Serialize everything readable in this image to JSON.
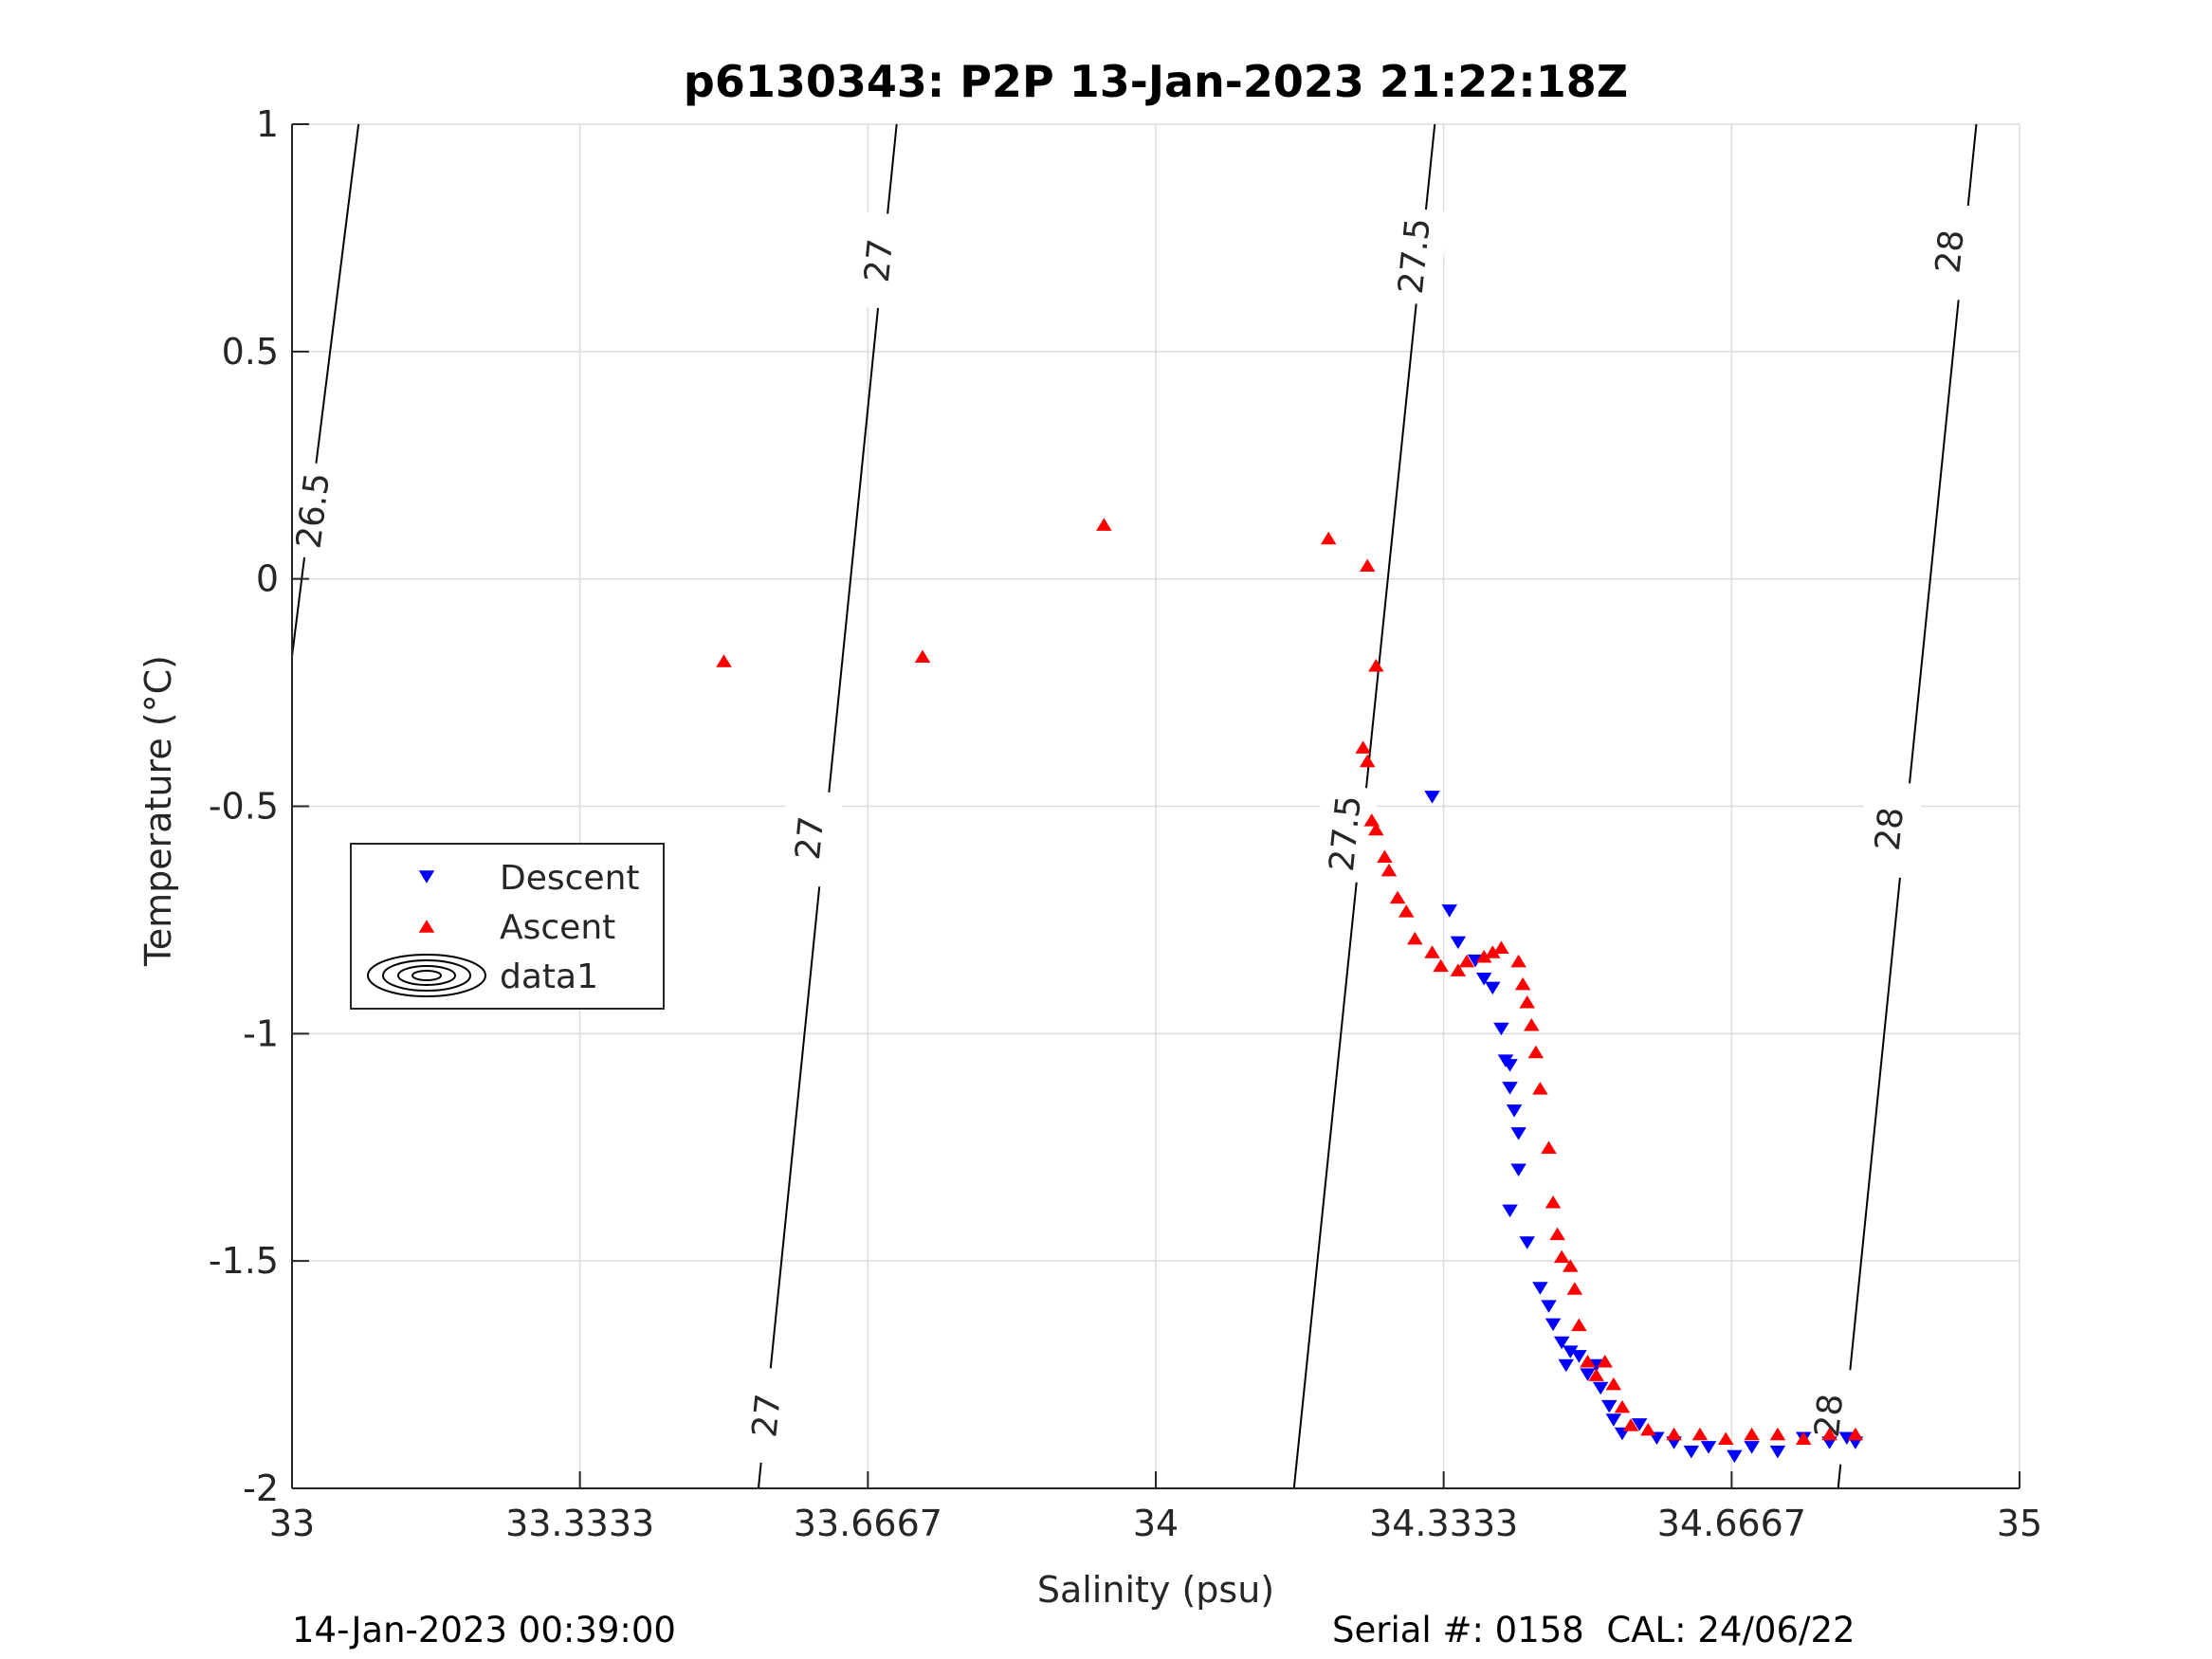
{
  "chart_data": {
    "type": "scatter",
    "title": "p6130343: P2P 13-Jan-2023 21:22:18Z",
    "xlabel": "Salinity (psu)",
    "ylabel": "Temperature (°C)",
    "xlim": [
      33,
      35
    ],
    "ylim": [
      -2,
      1
    ],
    "x_ticks": [
      33,
      33.3333,
      33.6667,
      34,
      34.3333,
      34.6667,
      35
    ],
    "x_tick_labels": [
      "33",
      "33.3333",
      "33.6667",
      "34",
      "34.3333",
      "34.6667",
      "35"
    ],
    "y_ticks": [
      -2,
      -1.5,
      -1,
      -0.5,
      0,
      0.5,
      1
    ],
    "y_tick_labels": [
      "-2",
      "-1.5",
      "-1",
      "-0.5",
      "0",
      "0.5",
      "1"
    ],
    "grid": true,
    "legend_position": "left-middle",
    "legend": [
      "Descent",
      "Ascent",
      "data1"
    ],
    "series": [
      {
        "name": "Descent",
        "marker": "triangle-down",
        "color": "#0000ff",
        "points": [
          [
            34.32,
            -0.48
          ],
          [
            34.34,
            -0.73
          ],
          [
            34.35,
            -0.8
          ],
          [
            34.37,
            -0.84
          ],
          [
            34.38,
            -0.88
          ],
          [
            34.39,
            -0.9
          ],
          [
            34.4,
            -0.99
          ],
          [
            34.405,
            -1.06
          ],
          [
            34.41,
            -1.07
          ],
          [
            34.41,
            -1.12
          ],
          [
            34.415,
            -1.17
          ],
          [
            34.42,
            -1.22
          ],
          [
            34.42,
            -1.3
          ],
          [
            34.41,
            -1.39
          ],
          [
            34.43,
            -1.46
          ],
          [
            34.445,
            -1.56
          ],
          [
            34.455,
            -1.6
          ],
          [
            34.46,
            -1.64
          ],
          [
            34.47,
            -1.68
          ],
          [
            34.48,
            -1.7
          ],
          [
            34.475,
            -1.73
          ],
          [
            34.49,
            -1.71
          ],
          [
            34.5,
            -1.75
          ],
          [
            34.51,
            -1.73
          ],
          [
            34.515,
            -1.78
          ],
          [
            34.525,
            -1.82
          ],
          [
            34.53,
            -1.85
          ],
          [
            34.54,
            -1.88
          ],
          [
            34.56,
            -1.86
          ],
          [
            34.58,
            -1.89
          ],
          [
            34.6,
            -1.9
          ],
          [
            34.62,
            -1.92
          ],
          [
            34.64,
            -1.91
          ],
          [
            34.67,
            -1.93
          ],
          [
            34.69,
            -1.91
          ],
          [
            34.72,
            -1.92
          ],
          [
            34.75,
            -1.89
          ],
          [
            34.78,
            -1.9
          ],
          [
            34.8,
            -1.89
          ],
          [
            34.81,
            -1.9
          ]
        ]
      },
      {
        "name": "Ascent",
        "marker": "triangle-up",
        "color": "#ff0000",
        "points": [
          [
            33.5,
            -0.18
          ],
          [
            33.73,
            -0.17
          ],
          [
            33.94,
            0.12
          ],
          [
            34.2,
            0.09
          ],
          [
            34.245,
            0.03
          ],
          [
            34.255,
            -0.19
          ],
          [
            34.24,
            -0.37
          ],
          [
            34.245,
            -0.4
          ],
          [
            34.25,
            -0.53
          ],
          [
            34.255,
            -0.55
          ],
          [
            34.265,
            -0.61
          ],
          [
            34.27,
            -0.64
          ],
          [
            34.28,
            -0.7
          ],
          [
            34.29,
            -0.73
          ],
          [
            34.3,
            -0.79
          ],
          [
            34.32,
            -0.82
          ],
          [
            34.33,
            -0.85
          ],
          [
            34.35,
            -0.86
          ],
          [
            34.36,
            -0.84
          ],
          [
            34.38,
            -0.83
          ],
          [
            34.39,
            -0.82
          ],
          [
            34.4,
            -0.81
          ],
          [
            34.42,
            -0.84
          ],
          [
            34.425,
            -0.89
          ],
          [
            34.43,
            -0.93
          ],
          [
            34.435,
            -0.98
          ],
          [
            34.44,
            -1.04
          ],
          [
            34.445,
            -1.12
          ],
          [
            34.455,
            -1.25
          ],
          [
            34.46,
            -1.37
          ],
          [
            34.465,
            -1.44
          ],
          [
            34.47,
            -1.49
          ],
          [
            34.48,
            -1.51
          ],
          [
            34.485,
            -1.56
          ],
          [
            34.49,
            -1.64
          ],
          [
            34.5,
            -1.72
          ],
          [
            34.51,
            -1.75
          ],
          [
            34.52,
            -1.72
          ],
          [
            34.53,
            -1.77
          ],
          [
            34.54,
            -1.82
          ],
          [
            34.55,
            -1.86
          ],
          [
            34.57,
            -1.87
          ],
          [
            34.6,
            -1.88
          ],
          [
            34.63,
            -1.88
          ],
          [
            34.66,
            -1.89
          ],
          [
            34.69,
            -1.88
          ],
          [
            34.72,
            -1.88
          ],
          [
            34.75,
            -1.89
          ],
          [
            34.78,
            -1.88
          ],
          [
            34.81,
            -1.88
          ]
        ]
      }
    ],
    "contours": [
      {
        "label": "26.5",
        "line": [
          [
            33.077,
            1
          ],
          [
            33.0,
            -0.17
          ]
        ],
        "labels_at": [
          [
            33.025,
            0.15
          ]
        ]
      },
      {
        "label": "27",
        "line": [
          [
            33.7,
            1
          ],
          [
            33.54,
            -2
          ]
        ],
        "labels_at": [
          [
            33.68,
            0.7
          ],
          [
            33.6,
            -0.57
          ],
          [
            33.55,
            -1.84
          ]
        ]
      },
      {
        "label": "27.5",
        "line": [
          [
            34.323,
            1
          ],
          [
            34.16,
            -2
          ]
        ],
        "labels_at": [
          [
            34.3,
            0.71
          ],
          [
            34.22,
            -0.56
          ]
        ]
      },
      {
        "label": "28",
        "line": [
          [
            34.95,
            1
          ],
          [
            34.79,
            -2
          ]
        ],
        "labels_at": [
          [
            34.92,
            0.72
          ],
          [
            34.85,
            -0.55
          ],
          [
            34.78,
            -1.84
          ]
        ]
      }
    ]
  },
  "footer": {
    "left": "14-Jan-2023 00:39:00",
    "right": "Serial #: 0158  CAL: 24/06/22"
  }
}
